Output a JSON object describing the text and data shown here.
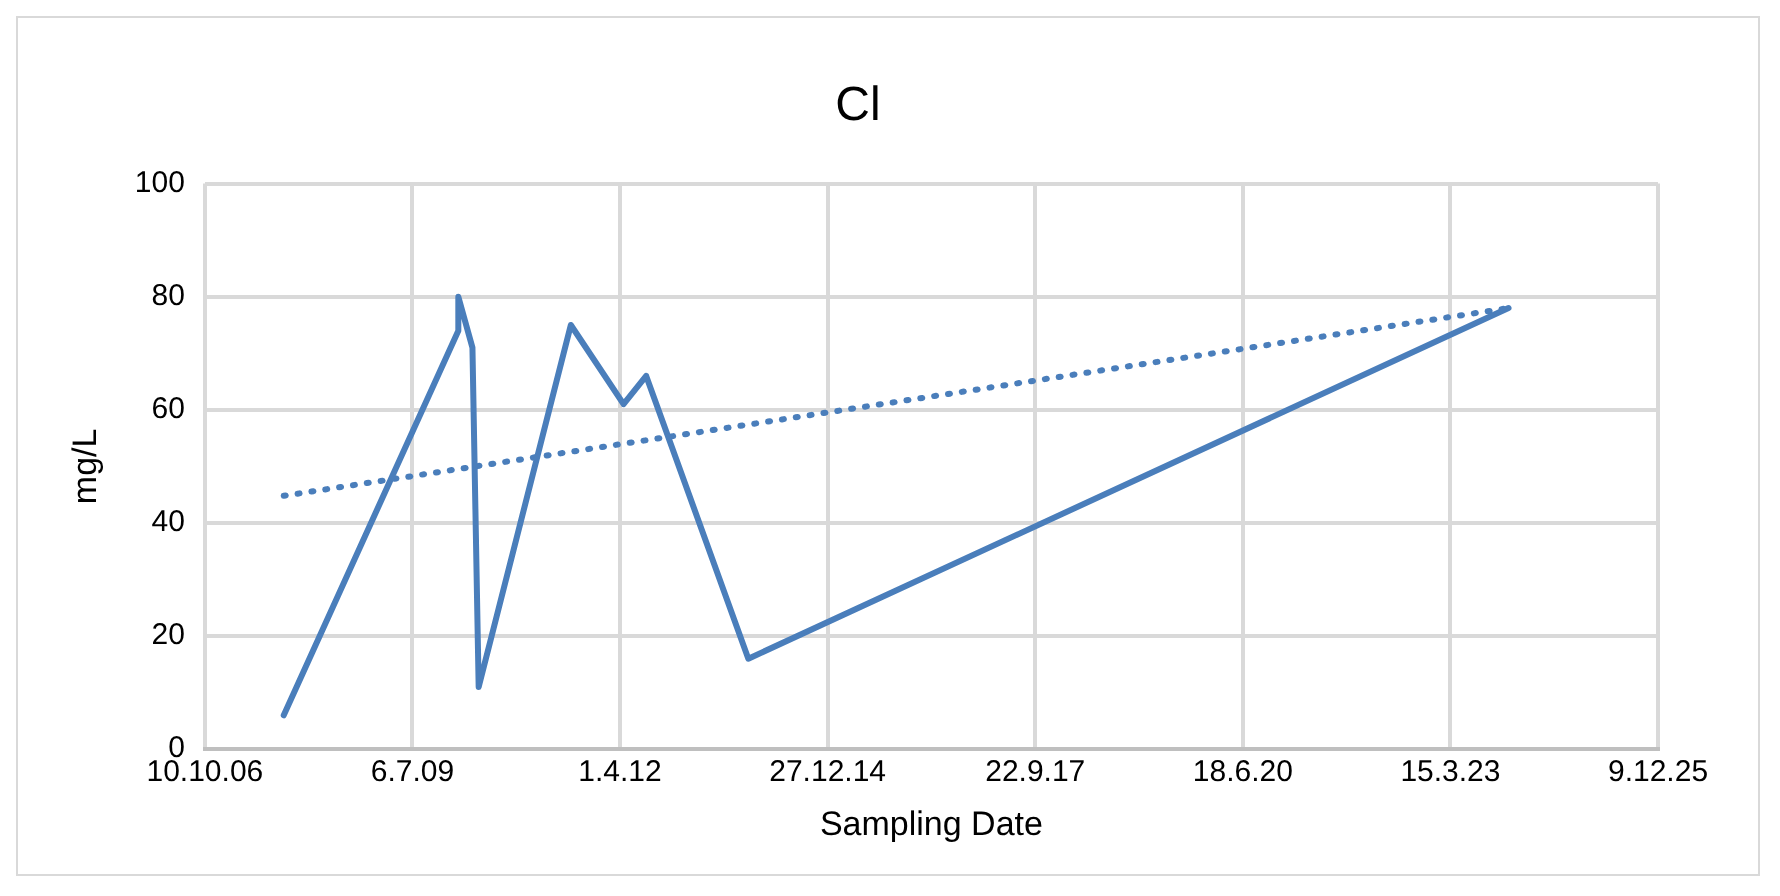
{
  "chart_data": {
    "type": "line",
    "title": "Cl",
    "xlabel": "Sampling Date",
    "ylabel": "mg/L",
    "marker": "none",
    "grid": true,
    "x": [
      "2007-10-25",
      "2010-02-12",
      "2010-02-12",
      "2010-04-21",
      "2010-05-21",
      "2011-08-08",
      "2012-04-18",
      "2012-08-05",
      "2013-12-10",
      "2023-12-20"
    ],
    "series": [
      {
        "color": "#4a7ebb",
        "line_style": "solid",
        "values": [
          6,
          74,
          80,
          71,
          11,
          75,
          61,
          66,
          16,
          78
        ]
      },
      {
        "type": "line",
        "color": "#4a7ebb",
        "line_style": "dotted",
        "x": [
          "2007-10-25",
          "2023-12-20"
        ],
        "values": [
          44.8,
          78
        ]
      }
    ],
    "xlim": [
      "2006-10-10",
      "2025-12-09"
    ],
    "xticks": [
      {
        "value": "2006-10-10",
        "label": "10.10.06"
      },
      {
        "value": "2009-07-06",
        "label": "6.7.09"
      },
      {
        "value": "2012-04-01",
        "label": "1.4.12"
      },
      {
        "value": "2014-12-27",
        "label": "27.12.14"
      },
      {
        "value": "2017-09-22",
        "label": "22.9.17"
      },
      {
        "value": "2020-06-18",
        "label": "18.6.20"
      },
      {
        "value": "2023-03-15",
        "label": "15.3.23"
      },
      {
        "value": "2025-12-09",
        "label": "9.12.25"
      }
    ],
    "ylim": [
      0,
      100
    ],
    "yticks": [
      0,
      20,
      40,
      60,
      80,
      100
    ]
  }
}
